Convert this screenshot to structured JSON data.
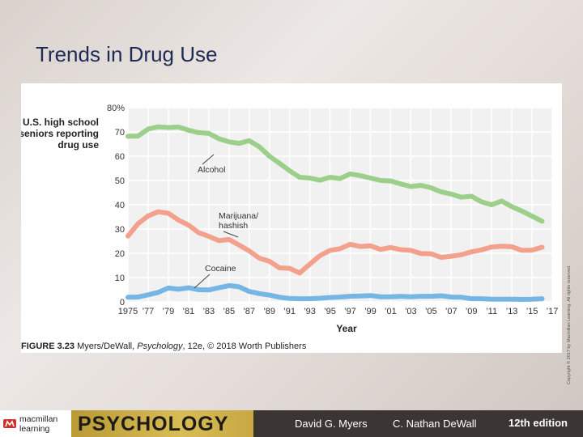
{
  "slide": {
    "title": "Trends in Drug Use"
  },
  "figure": {
    "caption_label": "FIGURE 3.23",
    "caption_text": " Myers/DeWall, ",
    "caption_italic": "Psychology",
    "caption_tail": ", 12e, © 2018 Worth Publishers",
    "copyright_vertical": "Copyright © 2017 by Macmillan Learning. All rights reserved."
  },
  "chart_data": {
    "type": "line",
    "title_lines": [
      "U.S. high school",
      "seniors reporting",
      "drug use"
    ],
    "xlabel": "Year",
    "x_ticks": [
      "1975",
      "’77",
      "’79",
      "’81",
      "’83",
      "’85",
      "’87",
      "’89",
      "’91",
      "’93",
      "’95",
      "’97",
      "’99",
      "’01",
      "’03",
      "’05",
      "’07",
      "’09",
      "’11",
      "’13",
      "’15",
      "’17"
    ],
    "y_ticks": [
      "0",
      "10",
      "20",
      "30",
      "40",
      "50",
      "60",
      "70",
      "80%"
    ],
    "ylim": [
      0,
      80
    ],
    "xlim": [
      1975,
      2017
    ],
    "grid": true,
    "series": [
      {
        "name": "Alcohol",
        "color": "#9ccf8a",
        "x": [
          1975,
          1976,
          1977,
          1978,
          1979,
          1980,
          1981,
          1982,
          1983,
          1984,
          1985,
          1986,
          1987,
          1988,
          1989,
          1990,
          1991,
          1992,
          1993,
          1994,
          1995,
          1996,
          1997,
          1998,
          1999,
          2000,
          2001,
          2002,
          2003,
          2004,
          2005,
          2006,
          2007,
          2008,
          2009,
          2010,
          2011,
          2012,
          2013,
          2014,
          2015,
          2016
        ],
        "values": [
          68.2,
          68.3,
          71.2,
          72.1,
          71.8,
          72.0,
          70.7,
          69.7,
          69.4,
          67.2,
          65.9,
          65.3,
          66.4,
          63.9,
          60.0,
          57.1,
          54.0,
          51.3,
          51.0,
          50.1,
          51.3,
          50.8,
          52.7,
          52.0,
          51.0,
          50.0,
          49.8,
          48.6,
          47.5,
          48.0,
          47.0,
          45.3,
          44.4,
          43.1,
          43.5,
          41.2,
          40.0,
          41.5,
          39.2,
          37.4,
          35.3,
          33.2
        ]
      },
      {
        "name": "Marijuana/ hashish",
        "color": "#f3a08c",
        "x": [
          1975,
          1976,
          1977,
          1978,
          1979,
          1980,
          1981,
          1982,
          1983,
          1984,
          1985,
          1986,
          1987,
          1988,
          1989,
          1990,
          1991,
          1992,
          1993,
          1994,
          1995,
          1996,
          1997,
          1998,
          1999,
          2000,
          2001,
          2002,
          2003,
          2004,
          2005,
          2006,
          2007,
          2008,
          2009,
          2010,
          2011,
          2012,
          2013,
          2014,
          2015,
          2016
        ],
        "values": [
          27.1,
          32.2,
          35.4,
          37.1,
          36.5,
          33.7,
          31.6,
          28.5,
          27.0,
          25.2,
          25.7,
          23.4,
          21.0,
          18.0,
          16.7,
          14.0,
          13.8,
          11.9,
          15.5,
          19.0,
          21.2,
          21.9,
          23.7,
          22.8,
          23.1,
          21.6,
          22.4,
          21.5,
          21.2,
          19.9,
          19.8,
          18.3,
          18.8,
          19.4,
          20.6,
          21.4,
          22.6,
          22.9,
          22.7,
          21.2,
          21.3,
          22.5
        ]
      },
      {
        "name": "Cocaine",
        "color": "#76b6e4",
        "x": [
          1975,
          1976,
          1977,
          1978,
          1979,
          1980,
          1981,
          1982,
          1983,
          1984,
          1985,
          1986,
          1987,
          1988,
          1989,
          1990,
          1991,
          1992,
          1993,
          1994,
          1995,
          1996,
          1997,
          1998,
          1999,
          2000,
          2001,
          2002,
          2003,
          2004,
          2005,
          2006,
          2007,
          2008,
          2009,
          2010,
          2011,
          2012,
          2013,
          2014,
          2015,
          2016
        ],
        "values": [
          1.9,
          2.0,
          2.9,
          3.9,
          5.7,
          5.2,
          5.8,
          5.0,
          4.9,
          5.8,
          6.7,
          6.2,
          4.3,
          3.4,
          2.8,
          1.9,
          1.4,
          1.3,
          1.3,
          1.5,
          1.8,
          2.0,
          2.3,
          2.4,
          2.6,
          2.1,
          2.1,
          2.3,
          2.1,
          2.3,
          2.3,
          2.5,
          2.0,
          1.9,
          1.3,
          1.3,
          1.1,
          1.1,
          1.1,
          1.0,
          1.1,
          1.3
        ]
      }
    ],
    "annotations": [
      {
        "label": "Alcohol",
        "series": 0
      },
      {
        "label_lines": [
          "Marijuana/",
          "hashish"
        ],
        "series": 1
      },
      {
        "label": "Cocaine",
        "series": 2
      }
    ]
  },
  "footer": {
    "publisher_line1": "macmillan",
    "publisher_line2": "learning",
    "book_title": "PSYCHOLOGY",
    "author1": "David G. Myers",
    "author2": "C. Nathan DeWall",
    "edition": "12th edition"
  }
}
